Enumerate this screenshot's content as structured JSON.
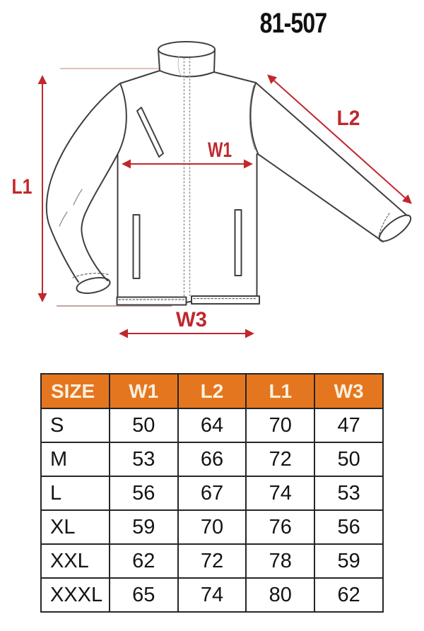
{
  "title": "81-507",
  "diagram": {
    "labels": {
      "l1": "L1",
      "l2": "L2",
      "w1": "W1",
      "w3": "W3"
    }
  },
  "table": {
    "headers": [
      "SIZE",
      "W1",
      "L2",
      "L1",
      "W3"
    ],
    "rows": [
      [
        "S",
        "50",
        "64",
        "70",
        "47"
      ],
      [
        "M",
        "53",
        "66",
        "72",
        "50"
      ],
      [
        "L",
        "56",
        "67",
        "74",
        "53"
      ],
      [
        "XL",
        "59",
        "70",
        "76",
        "56"
      ],
      [
        "XXL",
        "62",
        "72",
        "78",
        "59"
      ],
      [
        "XXXL",
        "65",
        "74",
        "80",
        "62"
      ]
    ]
  },
  "colors": {
    "accent_red": "#c1272d",
    "reference_line_pink": "#d8aca6",
    "table_header_bg": "#e4761f",
    "table_header_text": "#f9f0dc",
    "table_border": "#262626",
    "outline_gray": "#3f3f3f"
  }
}
